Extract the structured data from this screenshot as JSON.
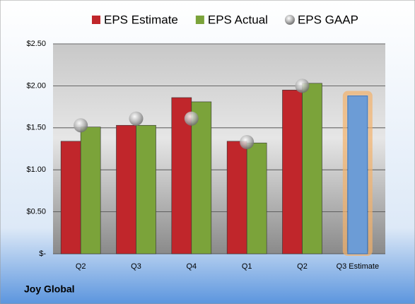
{
  "chart_data": {
    "type": "bar",
    "footer": "Joy Global",
    "categories": [
      "Q2",
      "Q3",
      "Q4",
      "Q1",
      "Q2",
      "Q3 Estimate"
    ],
    "series": [
      {
        "name": "EPS Estimate",
        "color": "#c0262b",
        "values": [
          1.34,
          1.53,
          1.86,
          1.34,
          1.95,
          1.88
        ]
      },
      {
        "name": "EPS Actual",
        "color": "#7ba33a",
        "values": [
          1.51,
          1.53,
          1.81,
          1.32,
          2.03,
          null
        ]
      },
      {
        "name": "EPS GAAP",
        "color": "#a6a6a6",
        "marker": "sphere",
        "values": [
          1.53,
          1.61,
          1.61,
          1.33,
          2.0,
          null
        ]
      }
    ],
    "estimate_color": "#6c9cd6",
    "ylim": [
      0,
      2.5
    ],
    "yticks": [
      {
        "value": 0,
        "label": "$-"
      },
      {
        "value": 0.5,
        "label": "$0.50"
      },
      {
        "value": 1,
        "label": "$1.00"
      },
      {
        "value": 1.5,
        "label": "$1.50"
      },
      {
        "value": 2,
        "label": "$2.00"
      },
      {
        "value": 2.5,
        "label": "$2.50"
      }
    ],
    "grid": true
  }
}
